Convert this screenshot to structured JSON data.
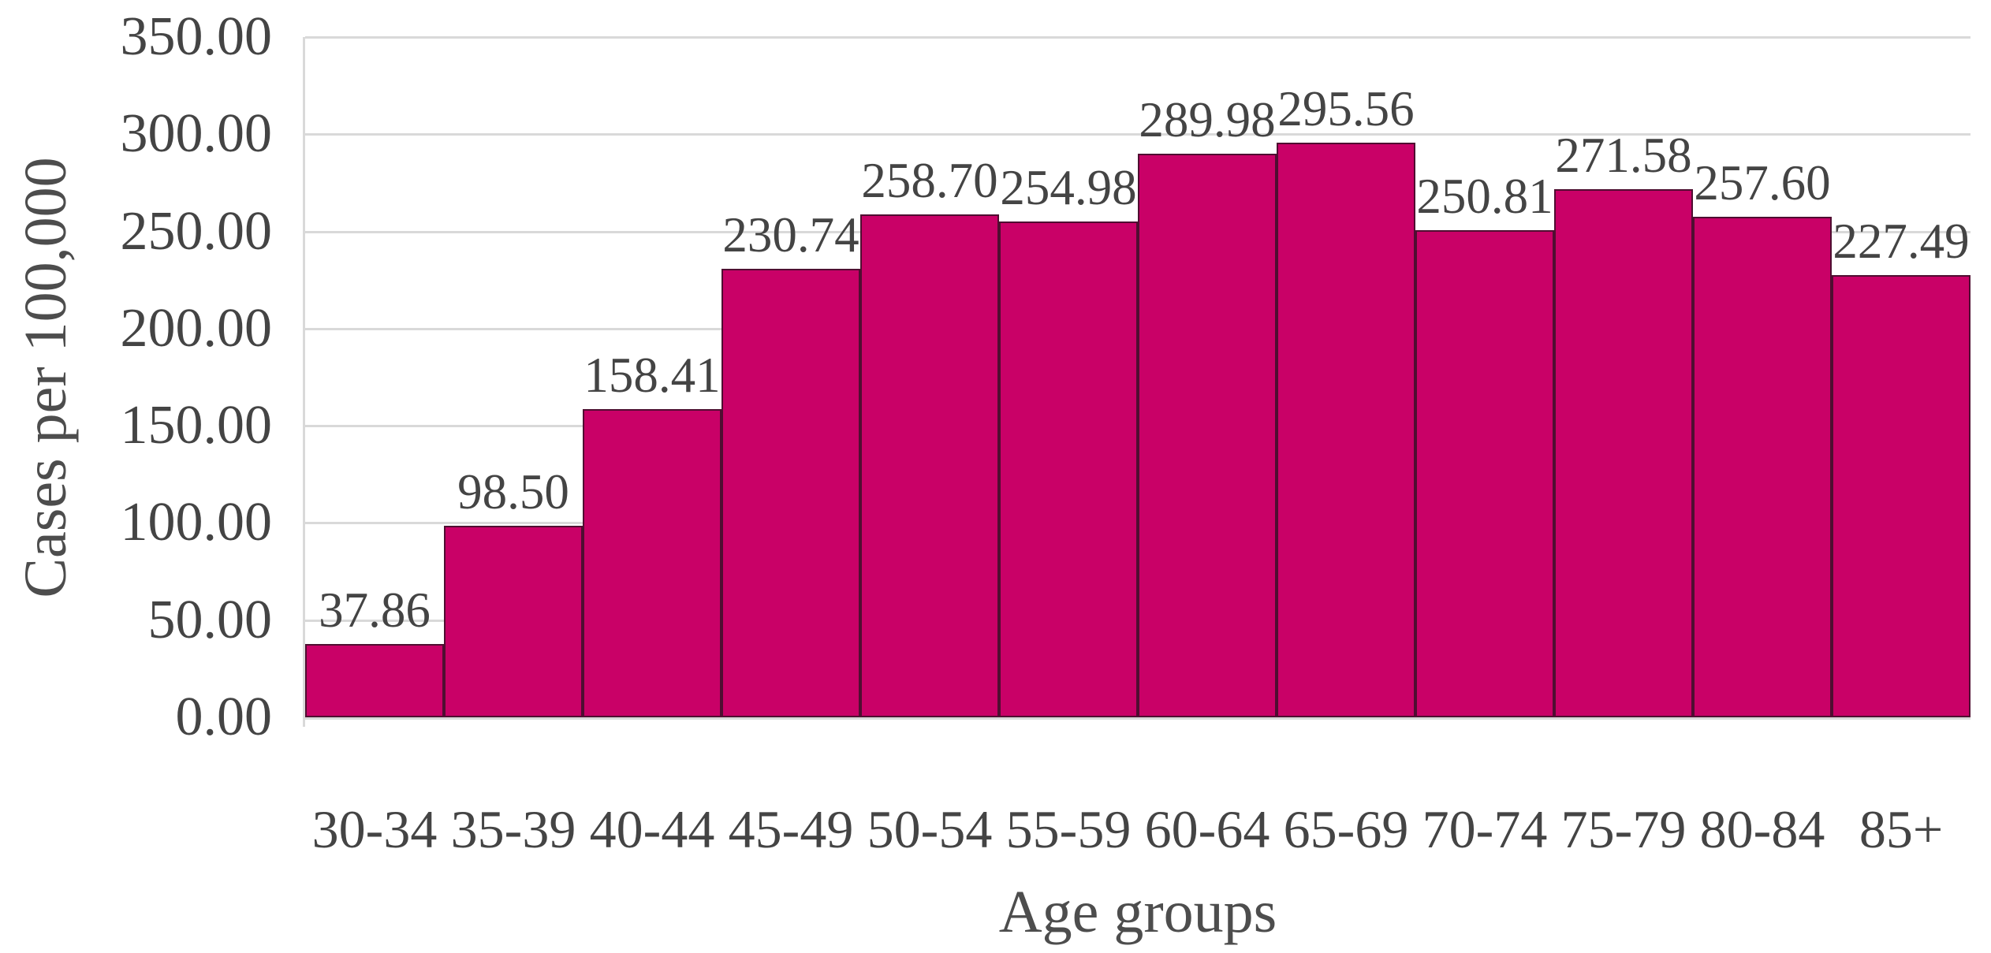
{
  "chart_data": {
    "type": "bar",
    "title": "",
    "xlabel": "Age groups",
    "ylabel": "Cases per 100,000",
    "categories": [
      "30-34",
      "35-39",
      "40-44",
      "45-49",
      "50-54",
      "55-59",
      "60-64",
      "65-69",
      "70-74",
      "75-79",
      "80-84",
      "85+"
    ],
    "values": [
      37.86,
      98.5,
      158.41,
      230.74,
      258.7,
      254.98,
      289.98,
      295.56,
      250.81,
      271.58,
      257.6,
      227.49
    ],
    "data_labels": [
      "37.86",
      "98.50",
      "158.41",
      "230.74",
      "258.70",
      "254.98",
      "289.98",
      "295.56",
      "250.81",
      "271.58",
      "257.60",
      "227.49"
    ],
    "y_ticks": [
      "0.00",
      "50.00",
      "100.00",
      "150.00",
      "200.00",
      "250.00",
      "300.00",
      "350.00"
    ],
    "ylim": [
      0,
      350
    ],
    "y_tick_step": 50,
    "grid": true,
    "legend_position": "none",
    "bar_gap": 0,
    "colors": {
      "bar_fill": "#C90167",
      "bar_border": "#4F0E31",
      "gridline": "#D9D9D9",
      "axis_line": "#D9D9D9",
      "tick_text": "#444444",
      "label_text": "#444444",
      "axis_title_text": "#4D4D4D",
      "background": "#FFFFFF"
    }
  }
}
